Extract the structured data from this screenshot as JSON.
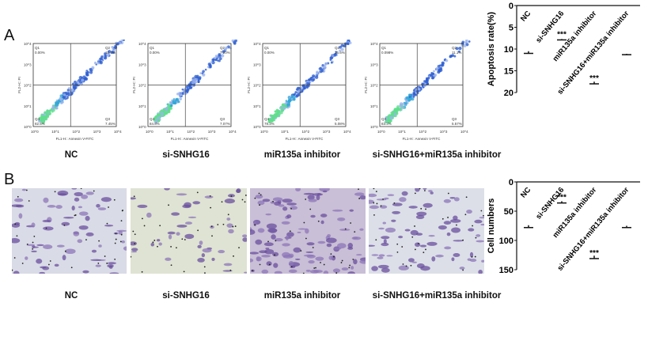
{
  "panels": {
    "a": "A",
    "b": "B"
  },
  "groups": [
    "NC",
    "si-SNHG16",
    "miR135a inhibitor",
    "si-SNHG16+miR135a inhibitor"
  ],
  "flow": {
    "xlabel": "FL1-H:: Annexin V-FITC",
    "ylabel": "FL2-H:: PI",
    "ticks": [
      "10^0",
      "10^1",
      "10^2",
      "10^3",
      "10^4"
    ],
    "plots": [
      {
        "Q1": "0.00%",
        "Q2": "10.1%",
        "Q3": "7.45%",
        "Q4": "82.5%"
      },
      {
        "Q1": "0.00%",
        "Q2": "7.20%",
        "Q3": "7.07%",
        "Q4": "84.8%"
      },
      {
        "Q1": "0.00%",
        "Q2": "16.6%",
        "Q3": "5.08%",
        "Q4": "78.3%"
      },
      {
        "Q1": "0.098%",
        "Q2": "11.1%",
        "Q3": "5.57%",
        "Q4": "83.3%"
      }
    ]
  },
  "micrograph_colors": [
    "#d9dbe6",
    "#dfe3d3",
    "#c9bfd6",
    "#dcdfe8"
  ],
  "chart_data": [
    {
      "type": "bar",
      "title": "",
      "ylabel": "Apoptosis rate(%)",
      "ylim": [
        0,
        20
      ],
      "yticks": [
        0,
        5,
        10,
        15,
        20
      ],
      "categories": [
        "NC",
        "si-SNHG16",
        "miR135a inhibitor",
        "si-SNHG16+miR135a inhibitor"
      ],
      "values": [
        10.5,
        7.7,
        17.5,
        11.1
      ],
      "errors": [
        0.5,
        0.2,
        0.5,
        0.2
      ],
      "annotations": [
        "",
        "***",
        "***",
        ""
      ]
    },
    {
      "type": "bar",
      "title": "",
      "ylabel": "Cell numbers",
      "ylim": [
        0,
        150
      ],
      "yticks": [
        0,
        50,
        100,
        150
      ],
      "categories": [
        "NC",
        "si-SNHG16",
        "miR135a inhibitor",
        "si-SNHG16+miR135a inhibitor"
      ],
      "values": [
        74,
        33,
        126,
        75
      ],
      "errors": [
        4,
        3,
        5,
        3
      ],
      "annotations": [
        "",
        "***",
        "***",
        ""
      ]
    }
  ]
}
